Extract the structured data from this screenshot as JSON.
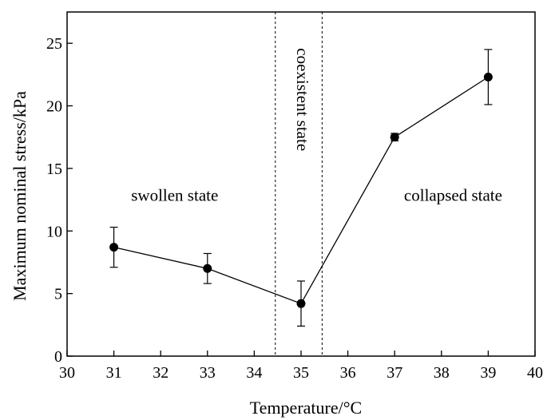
{
  "chart_data": {
    "type": "line",
    "title": "",
    "xlabel": "Temperature/°C",
    "ylabel": "Maximum nominal stress/kPa",
    "xlim": [
      30,
      40
    ],
    "ylim": [
      0,
      27.5
    ],
    "xticks": [
      30,
      31,
      32,
      33,
      34,
      35,
      36,
      37,
      38,
      39,
      40
    ],
    "yticks": [
      0,
      5,
      10,
      15,
      20,
      25
    ],
    "grid": false,
    "legend": "none",
    "series": [
      {
        "x": [
          31,
          33,
          35,
          37,
          39
        ],
        "y": [
          8.7,
          7.0,
          4.2,
          17.5,
          22.3
        ],
        "yerr": [
          1.6,
          1.2,
          1.8,
          0.3,
          2.2
        ],
        "color": "#000000",
        "marker": "circle"
      }
    ],
    "reference_lines": [
      {
        "orientation": "vertical",
        "x": 34.45,
        "style": "dashed"
      },
      {
        "orientation": "vertical",
        "x": 35.45,
        "style": "dashed"
      }
    ],
    "annotations": [
      {
        "text": "swollen state",
        "x": 32.3,
        "y": 12.4,
        "rotation": 0
      },
      {
        "text": "coexistent state",
        "x": 35.0,
        "y": 20.5,
        "rotation": 90
      },
      {
        "text": "collapsed state",
        "x": 38.25,
        "y": 12.4,
        "rotation": 0
      }
    ]
  }
}
